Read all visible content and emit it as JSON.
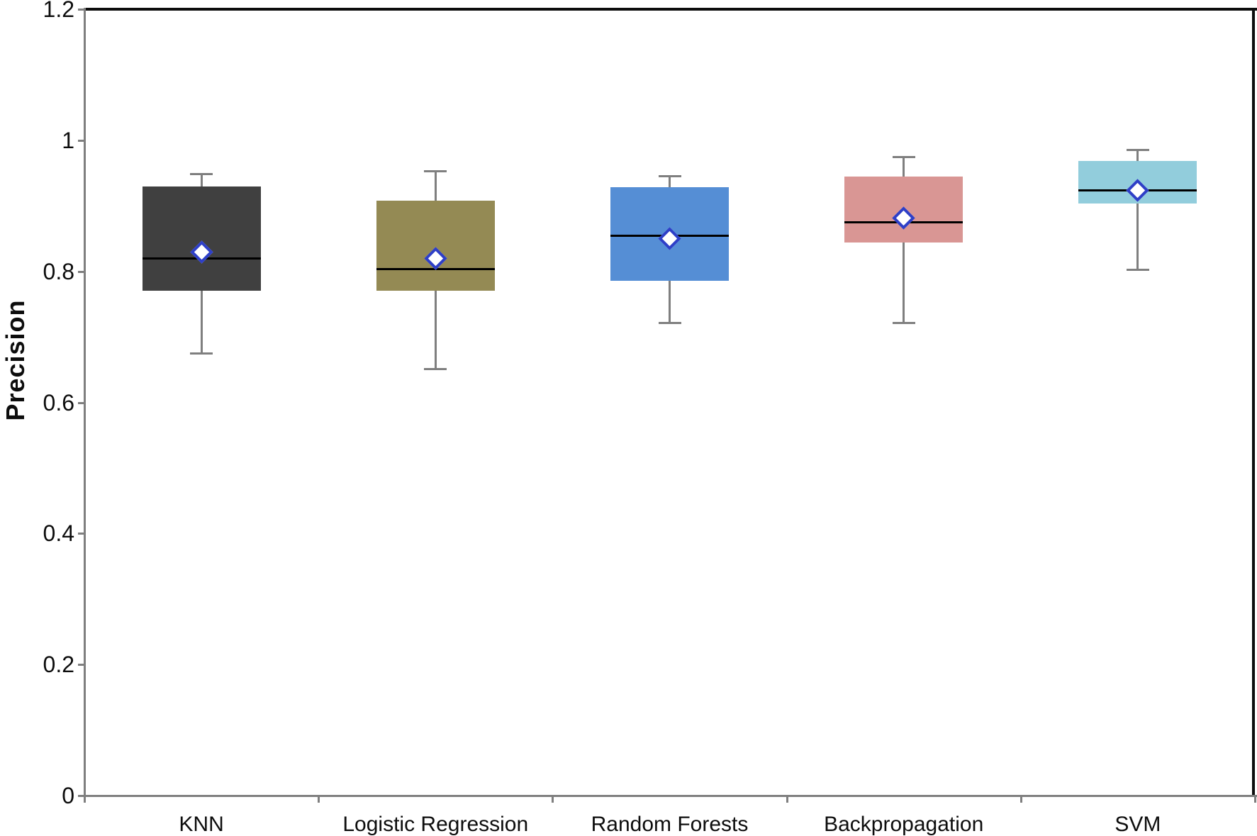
{
  "chart_data": {
    "type": "boxplot",
    "title": "",
    "xlabel": "",
    "ylabel": "Precision",
    "ylim": [
      0,
      1.2
    ],
    "grid": false,
    "legend": "none",
    "yticks": [
      {
        "value": 0,
        "label": "0"
      },
      {
        "value": 0.2,
        "label": "0.2"
      },
      {
        "value": 0.4,
        "label": "0.4"
      },
      {
        "value": 0.6,
        "label": "0.6"
      },
      {
        "value": 0.8,
        "label": "0.8"
      },
      {
        "value": 1,
        "label": "1"
      },
      {
        "value": 1.2,
        "label": "1.2"
      }
    ],
    "categories": [
      "KNN",
      "Logistic Regression",
      "Random Forests",
      "Backpropagation",
      "SVM"
    ],
    "series": [
      {
        "name": "KNN",
        "min": 0.675,
        "q1": 0.77,
        "median": 0.82,
        "mean": 0.829,
        "q3": 0.93,
        "max": 0.948,
        "color": "#404040"
      },
      {
        "name": "Logistic Regression",
        "min": 0.651,
        "q1": 0.77,
        "median": 0.803,
        "mean": 0.82,
        "q3": 0.908,
        "max": 0.953,
        "color": "#948a54"
      },
      {
        "name": "Random Forests",
        "min": 0.721,
        "q1": 0.786,
        "median": 0.854,
        "mean": 0.85,
        "q3": 0.928,
        "max": 0.945,
        "color": "#558ed5"
      },
      {
        "name": "Backpropagation",
        "min": 0.721,
        "q1": 0.844,
        "median": 0.875,
        "mean": 0.881,
        "q3": 0.945,
        "max": 0.974,
        "color": "#d99694"
      },
      {
        "name": "SVM",
        "min": 0.802,
        "q1": 0.903,
        "median": 0.924,
        "mean": 0.924,
        "q3": 0.968,
        "max": 0.985,
        "color": "#92cddc"
      }
    ],
    "mean_marker": {
      "shape": "diamond",
      "fill": "#ffffff",
      "stroke": "#2e3fc7"
    },
    "style_colors": {
      "axis": "#7f7f7f",
      "frame_border": "#0d0d0d",
      "whisker": "#7f7f7f",
      "median": "#000000",
      "text": "#0d0d0d"
    }
  }
}
